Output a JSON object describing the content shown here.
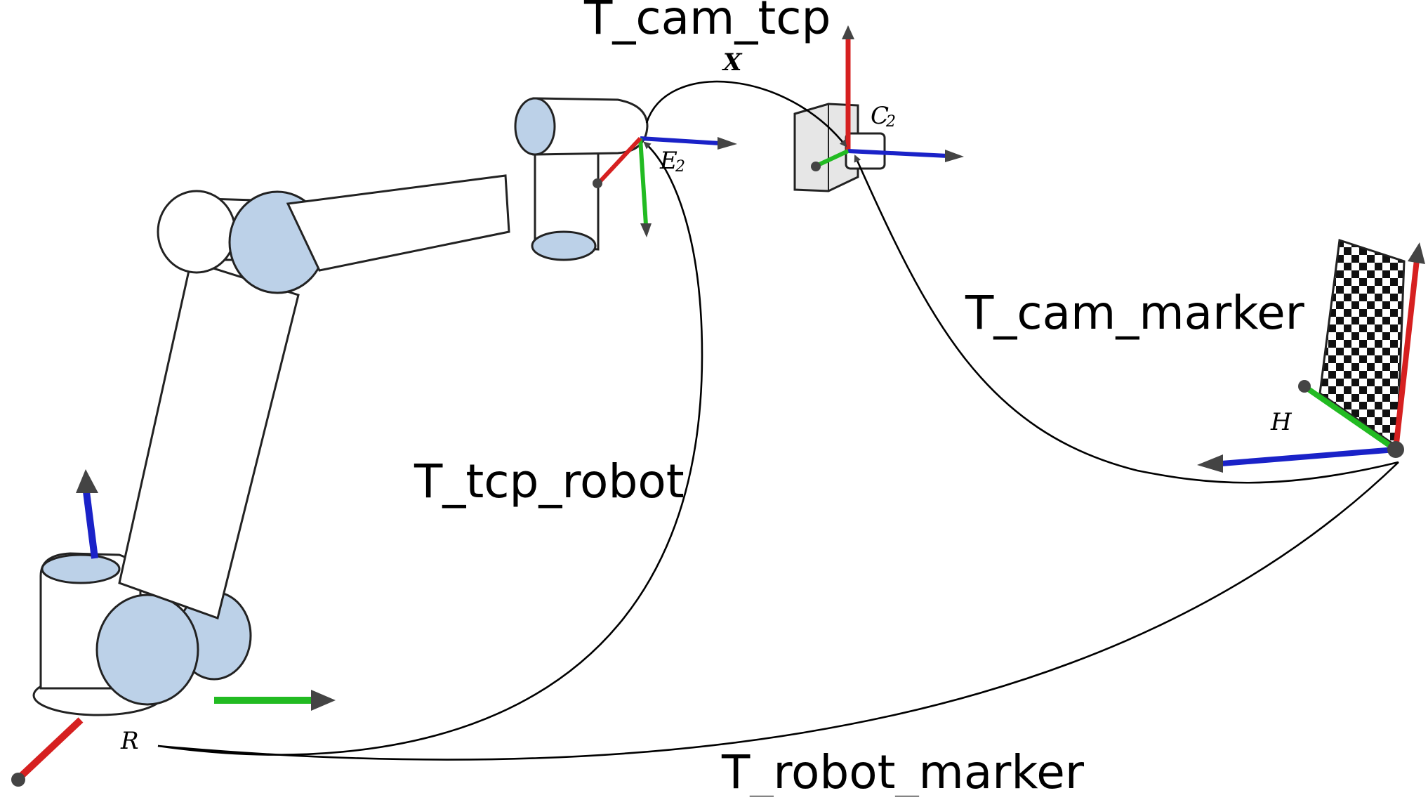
{
  "labels": {
    "t_cam_tcp": "T_cam_tcp",
    "t_tcp_robot": "T_tcp_robot",
    "t_cam_marker": "T_cam_marker",
    "t_robot_marker": "T_robot_marker"
  },
  "symbols": {
    "x": "X",
    "e2_main": "E",
    "e2_sub": "2",
    "c2_main": "C",
    "c2_sub": "2",
    "h": "H",
    "r": "R"
  },
  "colors": {
    "axis_x": "#d62020",
    "axis_y": "#22bb22",
    "axis_z": "#1a22c8",
    "link_cap": "#bcd1e8",
    "curve": "#000000"
  }
}
